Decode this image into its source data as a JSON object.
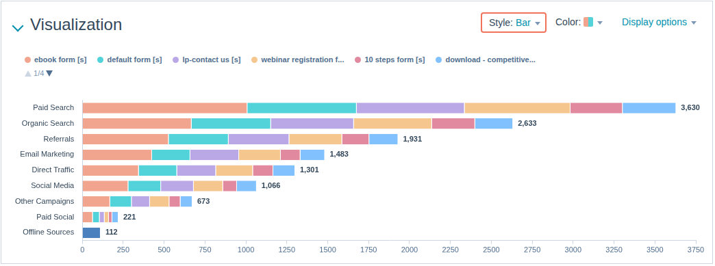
{
  "header": {
    "title": "Visualization",
    "style_label": "Style:",
    "style_value": "Bar",
    "color_label": "Color:",
    "display_options": "Display options"
  },
  "legend_pager": "1/4",
  "chart_data": {
    "type": "bar",
    "orientation": "horizontal",
    "stacked": true,
    "grid": false,
    "categories": [
      "Paid Search",
      "Organic Search",
      "Referrals",
      "Email Marketing",
      "Direct Traffic",
      "Social Media",
      "Other Campaigns",
      "Paid Social",
      "Offline Sources"
    ],
    "series": [
      {
        "name": "ebook form [s]",
        "color": "#f2a58e",
        "values": [
          1009,
          668,
          528,
          426,
          345,
          281,
          170,
          64,
          0
        ]
      },
      {
        "name": "default form [s]",
        "color": "#51d3d9",
        "values": [
          668,
          485,
          366,
          234,
          234,
          200,
          132,
          42,
          0
        ]
      },
      {
        "name": "lp-contact us [s]",
        "color": "#b9a7e6",
        "values": [
          660,
          507,
          371,
          298,
          238,
          200,
          111,
          30,
          0
        ]
      },
      {
        "name": "webinar registration f...",
        "color": "#f5c78e",
        "values": [
          647,
          477,
          323,
          255,
          226,
          179,
          119,
          26,
          0
        ]
      },
      {
        "name": "10 steps form [s]",
        "color": "#e0899f",
        "values": [
          319,
          264,
          166,
          120,
          124,
          85,
          68,
          21,
          0
        ]
      },
      {
        "name": "download - competitive...",
        "color": "#81c1fd",
        "values": [
          327,
          232,
          177,
          150,
          134,
          121,
          73,
          38,
          0
        ]
      },
      {
        "name": null,
        "color": "#4a80be",
        "values": [
          0,
          0,
          0,
          0,
          0,
          0,
          0,
          0,
          112
        ]
      }
    ],
    "totals": [
      3630,
      2633,
      1931,
      1483,
      1301,
      1066,
      673,
      221,
      112
    ],
    "total_labels": [
      "3,630",
      "2,633",
      "1,931",
      "1,483",
      "1,301",
      "1,066",
      "673",
      "221",
      "112"
    ],
    "xlim": [
      0,
      3750
    ],
    "xticks": [
      0,
      250,
      500,
      750,
      1000,
      1250,
      1500,
      1750,
      2000,
      2250,
      2500,
      2750,
      3000,
      3250,
      3500,
      3750
    ]
  }
}
